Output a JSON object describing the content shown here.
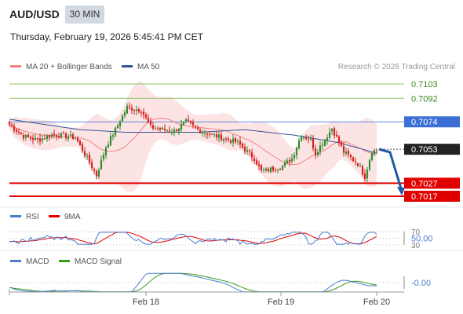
{
  "header": {
    "symbol": "AUD/USD",
    "timeframe": "30 MIN",
    "datetime": "Thursday, February 19, 2026 5:45:41 PM CET"
  },
  "legend": {
    "price": [
      {
        "label": "MA 20 + Bollinger Bands",
        "color": "#f08080"
      },
      {
        "label": "MA 50",
        "color": "#2f5597"
      }
    ],
    "rsi": [
      {
        "label": "RSI",
        "color": "#4a7bd0"
      },
      {
        "label": "9MA",
        "color": "#e00000"
      }
    ],
    "macd": [
      {
        "label": "MACD",
        "color": "#4a7bd0"
      },
      {
        "label": "MACD Signal",
        "color": "#3a9a20"
      }
    ]
  },
  "credit": "Research © 2026 Trading Central",
  "colors": {
    "up": "#2e8b2e",
    "down": "#d42020",
    "resistance": "#8fc46a",
    "support": "#e00000",
    "pivot": "#3b6fd6",
    "current": "#222222",
    "arrow": "#1f5aa6",
    "band": "#fde4e4"
  },
  "chart_data": [
    {
      "type": "candlestick",
      "name": "price",
      "ylim": [
        7010,
        7108
      ],
      "x_ticks": [
        "Feb 18",
        "Feb 19",
        "Feb 20"
      ],
      "levels": [
        {
          "label": "0.7103",
          "value": 7103,
          "kind": "resistance"
        },
        {
          "label": "0.7092",
          "value": 7092,
          "kind": "resistance"
        },
        {
          "label": "0.7074",
          "value": 7074,
          "kind": "pivot"
        },
        {
          "label": "0.7053",
          "value": 7053,
          "kind": "current"
        },
        {
          "label": "0.7027",
          "value": 7027,
          "kind": "support"
        },
        {
          "label": "0.7017",
          "value": 7017,
          "kind": "support"
        }
      ],
      "close_anchors": [
        [
          0,
          7072
        ],
        [
          6,
          7063
        ],
        [
          12,
          7060
        ],
        [
          18,
          7064
        ],
        [
          24,
          7063
        ],
        [
          28,
          7062
        ],
        [
          33,
          7046
        ],
        [
          37,
          7033
        ],
        [
          41,
          7055
        ],
        [
          45,
          7068
        ],
        [
          50,
          7085
        ],
        [
          56,
          7083
        ],
        [
          60,
          7070
        ],
        [
          65,
          7068
        ],
        [
          70,
          7067
        ],
        [
          75,
          7074
        ],
        [
          80,
          7068
        ],
        [
          86,
          7064
        ],
        [
          90,
          7062
        ],
        [
          97,
          7058
        ],
        [
          104,
          7046
        ],
        [
          107,
          7036
        ],
        [
          112,
          7038
        ],
        [
          116,
          7040
        ],
        [
          120,
          7046
        ],
        [
          124,
          7064
        ],
        [
          128,
          7060
        ],
        [
          130,
          7050
        ],
        [
          133,
          7058
        ],
        [
          137,
          7069
        ],
        [
          142,
          7051
        ],
        [
          148,
          7042
        ],
        [
          151,
          7032
        ],
        [
          154,
          7052
        ],
        [
          156,
          7052
        ]
      ],
      "ma50_anchors": [
        [
          0,
          7076
        ],
        [
          30,
          7068
        ],
        [
          50,
          7066
        ],
        [
          80,
          7066
        ],
        [
          100,
          7068
        ],
        [
          120,
          7064
        ],
        [
          140,
          7058
        ],
        [
          156,
          7050
        ]
      ]
    },
    {
      "type": "line",
      "name": "RSI",
      "ylim": [
        30,
        70
      ],
      "y_ticks": [
        70,
        30
      ],
      "current_label": "50.00",
      "series": [
        {
          "name": "RSI"
        },
        {
          "name": "9MA"
        }
      ]
    },
    {
      "type": "line",
      "name": "MACD",
      "current_label": "-0.00",
      "series": [
        {
          "name": "MACD"
        },
        {
          "name": "MACD Signal"
        }
      ]
    }
  ]
}
